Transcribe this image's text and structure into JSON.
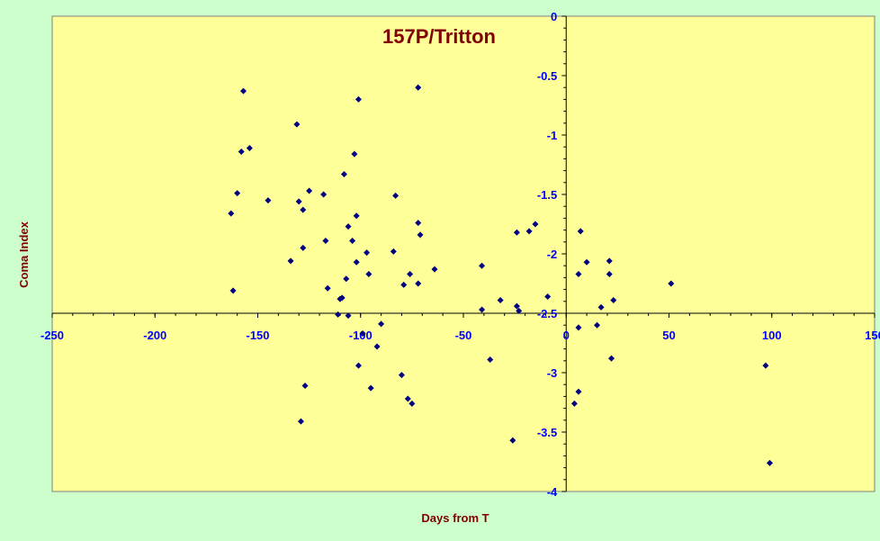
{
  "chart_data": {
    "type": "scatter",
    "title": "157P/Tritton",
    "xlabel": "Days from T",
    "ylabel": "Coma Index",
    "xlim": [
      -250,
      150
    ],
    "ylim": [
      -4,
      0
    ],
    "x_ticks": [
      -250,
      -200,
      -150,
      -100,
      -50,
      0,
      50,
      100,
      150
    ],
    "y_ticks": [
      0,
      -0.5,
      -1,
      -1.5,
      -2,
      -2.5,
      -3,
      -3.5,
      -4
    ],
    "grid": false,
    "legend": "none",
    "colors": {
      "plot_bg": "#ffff99",
      "outer_bg": "#ccffcc",
      "marker": "#000080",
      "tick_text": "#0000ff",
      "title_text": "#800000"
    },
    "series": [
      {
        "x": [
          -157,
          -154,
          -158,
          -160,
          -163,
          -162,
          -131,
          -130,
          -128,
          -125,
          -118,
          -145,
          -134,
          -128,
          -117,
          -116,
          -109,
          -110,
          -111,
          -127,
          -129,
          -101,
          -103,
          -108,
          -102,
          -106,
          -104,
          -102,
          -107,
          -106,
          -97,
          -96,
          -101,
          -99,
          -95,
          -92,
          -90,
          -83,
          -84,
          -80,
          -72,
          -72,
          -71,
          -76,
          -75,
          -79,
          -77,
          -64,
          -72,
          -41,
          -41,
          -37,
          -32,
          -24,
          -24,
          -18,
          -15,
          -9,
          -26,
          -23,
          7,
          10,
          6,
          6,
          4,
          6,
          21,
          21,
          17,
          15,
          23,
          22,
          51,
          97,
          99
        ],
        "y": [
          -0.63,
          -1.11,
          -1.14,
          -1.49,
          -1.66,
          -2.31,
          -0.91,
          -1.56,
          -1.63,
          -1.47,
          -1.5,
          -1.55,
          -2.06,
          -1.95,
          -1.89,
          -2.29,
          -2.37,
          -2.38,
          -2.51,
          -3.11,
          -3.41,
          -0.7,
          -1.16,
          -1.33,
          -1.68,
          -1.77,
          -1.89,
          -2.07,
          -2.21,
          -2.52,
          -1.99,
          -2.17,
          -2.94,
          -2.67,
          -3.13,
          -2.78,
          -2.59,
          -1.51,
          -1.98,
          -3.02,
          -0.6,
          -1.74,
          -1.84,
          -2.17,
          -3.26,
          -2.26,
          -3.22,
          -2.13,
          -2.25,
          -2.1,
          -2.47,
          -2.89,
          -2.39,
          -1.82,
          -2.44,
          -1.81,
          -1.75,
          -2.36,
          -3.57,
          -2.48,
          -1.81,
          -2.07,
          -2.17,
          -3.16,
          -3.26,
          -2.62,
          -2.06,
          -2.17,
          -2.45,
          -2.6,
          -2.39,
          -2.88,
          -2.25,
          -2.94,
          -3.76
        ]
      }
    ]
  }
}
